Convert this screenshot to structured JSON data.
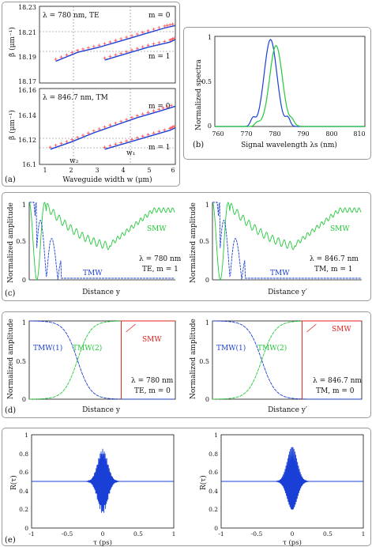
{
  "colors": {
    "blue": "#1a3fd6",
    "green": "#22c93a",
    "red": "#e0201c",
    "pink": "#ff4a4a",
    "grid": "#777777"
  },
  "chart_data": [
    {
      "id": "a_top",
      "type": "line",
      "panel": "(a)",
      "annotation": "λ = 780 nm, TE",
      "ylabel": "β (μm⁻¹)",
      "yticks": [
        "18.23",
        "18.21",
        "18.19",
        "18.17"
      ],
      "xlim": [
        1,
        6
      ],
      "ylim": [
        18.17,
        18.23
      ],
      "mode_labels": [
        "m = 0",
        "m = 1"
      ],
      "series": [
        {
          "name": "",
          "color": "blue",
          "x": [
            1.6,
            2.4,
            3.2,
            4.0,
            4.8,
            5.6,
            6.0
          ],
          "y": [
            18.187,
            18.194,
            18.198,
            18.203,
            18.208,
            18.213,
            18.215
          ]
        },
        {
          "name": "",
          "color": "blue",
          "x": [
            3.4,
            4.2,
            5.0,
            5.8,
            6.0
          ],
          "y": [
            18.188,
            18.193,
            18.198,
            18.202,
            18.204
          ]
        }
      ]
    },
    {
      "id": "a_bottom",
      "type": "line",
      "panel": "(a)",
      "annotation": "λ = 846.7 nm, TM",
      "ylabel": "β (μm⁻¹)",
      "yticks": [
        "16.16",
        "16.14",
        "16.12",
        "16.1"
      ],
      "xticks": [
        "1",
        "2",
        "3",
        "4",
        "5",
        "6"
      ],
      "xlabel": "Waveguide width w (μm)",
      "xlim": [
        1,
        6
      ],
      "ylim": [
        16.1,
        16.16
      ],
      "mode_labels": [
        "m = 0",
        "m = 1"
      ],
      "marker_labels": [
        "w₂",
        "w₁"
      ],
      "series": [
        {
          "name": "",
          "color": "blue",
          "x": [
            1.4,
            2.2,
            3.0,
            3.8,
            4.6,
            5.4,
            6.0
          ],
          "y": [
            16.112,
            16.118,
            16.125,
            16.131,
            16.137,
            16.142,
            16.146
          ]
        },
        {
          "name": "",
          "color": "blue",
          "x": [
            3.4,
            4.2,
            5.0,
            5.8,
            6.0
          ],
          "y": [
            16.112,
            16.117,
            16.122,
            16.127,
            16.129
          ]
        }
      ]
    },
    {
      "id": "b",
      "type": "line",
      "panel": "(b)",
      "xlabel": "Signal wavelength λs (nm)",
      "ylabel": "Normalized spectra",
      "xticks": [
        "760",
        "770",
        "780",
        "790",
        "800",
        "810"
      ],
      "yticks": [
        "1",
        "0.5",
        "0"
      ],
      "xlim": [
        760,
        812
      ],
      "ylim": [
        0,
        1
      ],
      "series": [
        {
          "name": "",
          "color": "blue",
          "center": 779.3,
          "width": 2.2,
          "peak": 1.0
        },
        {
          "name": "",
          "color": "green",
          "center": 781.2,
          "width": 2.2,
          "peak": 0.93
        }
      ]
    },
    {
      "id": "c_left",
      "type": "line",
      "panel": "(c)",
      "ylabel": "Normalized amplitude",
      "xlabel": "Distance y",
      "yticks": [
        "1",
        "0.5",
        "0"
      ],
      "labels": {
        "smw": "SMW",
        "tmw": "TMW",
        "lambda": "λ = 780 nm",
        "mode": "TE, m = 1"
      }
    },
    {
      "id": "c_right",
      "type": "line",
      "panel": "(c)",
      "ylabel": "Normalized amplitude",
      "xlabel": "Distance y′",
      "yticks": [
        "1",
        "0.5",
        "0"
      ],
      "labels": {
        "smw": "SMW",
        "tmw": "TMW",
        "lambda": "λ = 846.7 nm",
        "mode": "TM, m = 1"
      }
    },
    {
      "id": "d_left",
      "type": "line",
      "panel": "(d)",
      "ylabel": "Normalized amplitude",
      "xlabel": "Distance y",
      "yticks": [
        "1",
        "0.5",
        "0"
      ],
      "labels": {
        "tmw1": "TMW(1)",
        "tmw2": "TMW(2)",
        "smw": "SMW",
        "lambda": "λ = 780 nm",
        "mode": "TE, m = 0"
      }
    },
    {
      "id": "d_right",
      "type": "line",
      "panel": "(d)",
      "ylabel": "Normalized amplitude",
      "xlabel": "Distance y′",
      "yticks": [
        "1",
        "0.5",
        "0"
      ],
      "labels": {
        "tmw1": "TMW(1)",
        "tmw2": "TMW(2)",
        "smw": "SMW",
        "lambda": "λ = 846.7 nm",
        "mode": "TM, m = 0"
      }
    },
    {
      "id": "e_left",
      "type": "line",
      "panel": "(e)",
      "ylabel": "R(τ)",
      "xlabel": "τ (ps)",
      "xticks": [
        "-1",
        "-0.5",
        "0",
        "0.5",
        "1"
      ],
      "yticks": [
        "1",
        "0.8",
        "0.6",
        "0.4",
        "0.2",
        "0"
      ],
      "xlim": [
        -1,
        1
      ],
      "ylim": [
        0,
        1
      ],
      "baseline": 0.5,
      "peak_amplitude": 0.35,
      "envelope_width_ps": 0.07,
      "fringe_period_ps": 0.0115
    },
    {
      "id": "e_right",
      "type": "line",
      "panel": "(e)",
      "ylabel": "R(τ)",
      "xlabel": "τ (ps)",
      "xticks": [
        "-1",
        "-0.5",
        "0",
        "0.5",
        "1"
      ],
      "yticks": [
        "1",
        "0.8",
        "0.6",
        "0.4",
        "0.2",
        "0"
      ],
      "xlim": [
        -1,
        1
      ],
      "ylim": [
        0,
        1
      ],
      "baseline": 0.5,
      "peak_amplitude": 0.37,
      "envelope_width_ps": 0.07,
      "fringe_period_ps": 0.0125
    }
  ]
}
